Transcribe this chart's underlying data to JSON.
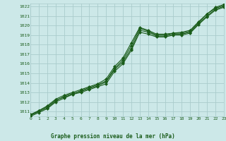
{
  "title": "Graphe pression niveau de la mer (hPa)",
  "background_color": "#cce8e8",
  "grid_color": "#aacccc",
  "line_color": "#1a5c1a",
  "xlim": [
    0,
    23
  ],
  "ylim": [
    1010.5,
    1022.3
  ],
  "yticks": [
    1011,
    1012,
    1013,
    1014,
    1015,
    1016,
    1017,
    1018,
    1019,
    1020,
    1021,
    1022
  ],
  "xticks": [
    0,
    1,
    2,
    3,
    4,
    5,
    6,
    7,
    8,
    9,
    10,
    11,
    12,
    13,
    14,
    15,
    16,
    17,
    18,
    19,
    20,
    21,
    22,
    23
  ],
  "series": [
    [
      1010.7,
      1011.1,
      1011.5,
      1012.2,
      1012.5,
      1012.8,
      1013.2,
      1013.5,
      1013.8,
      1014.2,
      1015.5,
      1016.4,
      1017.9,
      1019.7,
      1019.4,
      1019.0,
      1019.0,
      1019.2,
      1019.2,
      1019.4,
      1020.3,
      1021.2,
      1021.8,
      1022.1
    ],
    [
      1010.6,
      1011.1,
      1011.6,
      1012.3,
      1012.7,
      1013.0,
      1013.3,
      1013.6,
      1013.9,
      1014.4,
      1015.7,
      1016.6,
      1018.2,
      1019.8,
      1019.5,
      1019.1,
      1019.1,
      1019.2,
      1019.3,
      1019.5,
      1020.4,
      1021.2,
      1021.9,
      1022.2
    ],
    [
      1010.6,
      1011.0,
      1011.4,
      1012.1,
      1012.6,
      1012.9,
      1013.1,
      1013.4,
      1013.7,
      1014.1,
      1015.4,
      1016.2,
      1017.6,
      1019.5,
      1019.3,
      1018.9,
      1018.9,
      1019.1,
      1019.1,
      1019.3,
      1020.2,
      1021.0,
      1021.7,
      1022.0
    ],
    [
      1010.5,
      1010.9,
      1011.3,
      1012.0,
      1012.4,
      1012.8,
      1013.0,
      1013.3,
      1013.6,
      1013.9,
      1015.2,
      1016.0,
      1017.4,
      1019.3,
      1019.1,
      1018.8,
      1018.8,
      1019.0,
      1019.0,
      1019.2,
      1020.1,
      1020.9,
      1021.6,
      1021.9
    ]
  ]
}
